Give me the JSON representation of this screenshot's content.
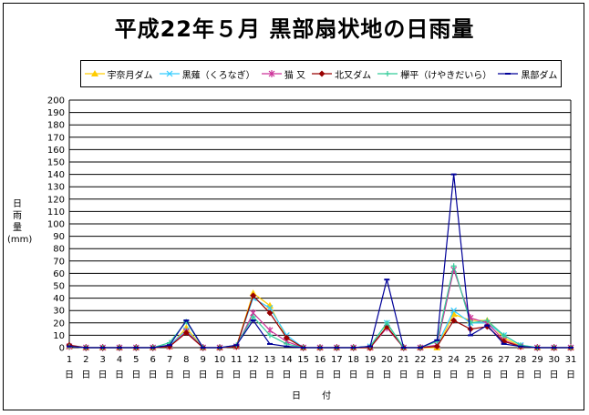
{
  "title": "平成22年５月  黒部扇状地の日雨量",
  "ylabel": "日\n雨\n量\n(mm)",
  "xlabel": "日 付",
  "colors": {
    "宇奈月ダム": "#ffcc00",
    "黒薙（くろなぎ）": "#33ccff",
    "猫  又": "#cc3399",
    "北又ダム": "#990000",
    "欅平（けやきだいら）": "#33cc99",
    "黒部ダム": "#000099"
  },
  "chart_data": {
    "type": "line",
    "title": "平成22年５月  黒部扇状地の日雨量",
    "xlabel": "日 付",
    "ylabel": "日雨量(mm)",
    "x": [
      1,
      2,
      3,
      4,
      5,
      6,
      7,
      8,
      9,
      10,
      11,
      12,
      13,
      14,
      15,
      16,
      17,
      18,
      19,
      20,
      21,
      22,
      23,
      24,
      25,
      26,
      27,
      28,
      29,
      30,
      31
    ],
    "x_tick_labels": [
      "1\n日",
      "2\n日",
      "3\n日",
      "4\n日",
      "5\n日",
      "6\n日",
      "7\n日",
      "8\n日",
      "9\n日",
      "10\n日",
      "11\n日",
      "12\n日",
      "13\n日",
      "14\n日",
      "15\n日",
      "16\n日",
      "17\n日",
      "18\n日",
      "19\n日",
      "20\n日",
      "21\n日",
      "22\n日",
      "23\n日",
      "24\n日",
      "25\n日",
      "26\n日",
      "27\n日",
      "28\n日",
      "29\n日",
      "30\n日",
      "31\n日"
    ],
    "ylim": [
      0,
      200
    ],
    "yticks": [
      0,
      10,
      20,
      30,
      40,
      50,
      60,
      70,
      80,
      90,
      100,
      110,
      120,
      130,
      140,
      150,
      160,
      170,
      180,
      190,
      200
    ],
    "grid": true,
    "legend_position": "top",
    "series": [
      {
        "name": "宇奈月ダム",
        "marker": "triangle",
        "values": [
          1,
          0,
          0,
          0,
          0,
          0,
          1,
          16,
          0,
          0,
          1,
          44,
          34,
          8,
          0,
          0,
          0,
          0,
          0,
          17,
          0,
          0,
          0,
          27,
          22,
          22,
          8,
          1,
          0,
          0,
          0
        ]
      },
      {
        "name": "黒薙（くろなぎ）",
        "marker": "x",
        "values": [
          1,
          0,
          0,
          0,
          0,
          0,
          2,
          14,
          0,
          0,
          1,
          40,
          32,
          10,
          0,
          0,
          0,
          0,
          1,
          20,
          0,
          0,
          2,
          30,
          20,
          20,
          10,
          2,
          0,
          0,
          0
        ]
      },
      {
        "name": "猫  又",
        "marker": "star",
        "values": [
          1,
          0,
          0,
          0,
          0,
          0,
          1,
          13,
          0,
          0,
          1,
          28,
          14,
          5,
          0,
          0,
          0,
          0,
          0,
          16,
          0,
          0,
          2,
          63,
          24,
          20,
          6,
          1,
          0,
          0,
          0
        ]
      },
      {
        "name": "北又ダム",
        "marker": "diamond",
        "values": [
          2,
          0,
          0,
          0,
          0,
          0,
          1,
          12,
          0,
          0,
          1,
          42,
          28,
          8,
          0,
          0,
          0,
          0,
          0,
          17,
          0,
          0,
          1,
          22,
          15,
          17,
          5,
          1,
          0,
          0,
          0
        ]
      },
      {
        "name": "欅平（けやきだいら）",
        "marker": "plus",
        "values": [
          1,
          0,
          0,
          0,
          0,
          0,
          4,
          21,
          0,
          0,
          2,
          25,
          10,
          3,
          0,
          0,
          0,
          0,
          1,
          20,
          0,
          0,
          5,
          66,
          20,
          22,
          10,
          2,
          0,
          0,
          0
        ]
      },
      {
        "name": "黒部ダム",
        "marker": "dash",
        "values": [
          1,
          0,
          0,
          0,
          0,
          0,
          2,
          22,
          0,
          0,
          2,
          22,
          3,
          1,
          0,
          0,
          0,
          0,
          1,
          55,
          0,
          0,
          6,
          140,
          10,
          18,
          3,
          1,
          0,
          0,
          0
        ]
      }
    ]
  }
}
